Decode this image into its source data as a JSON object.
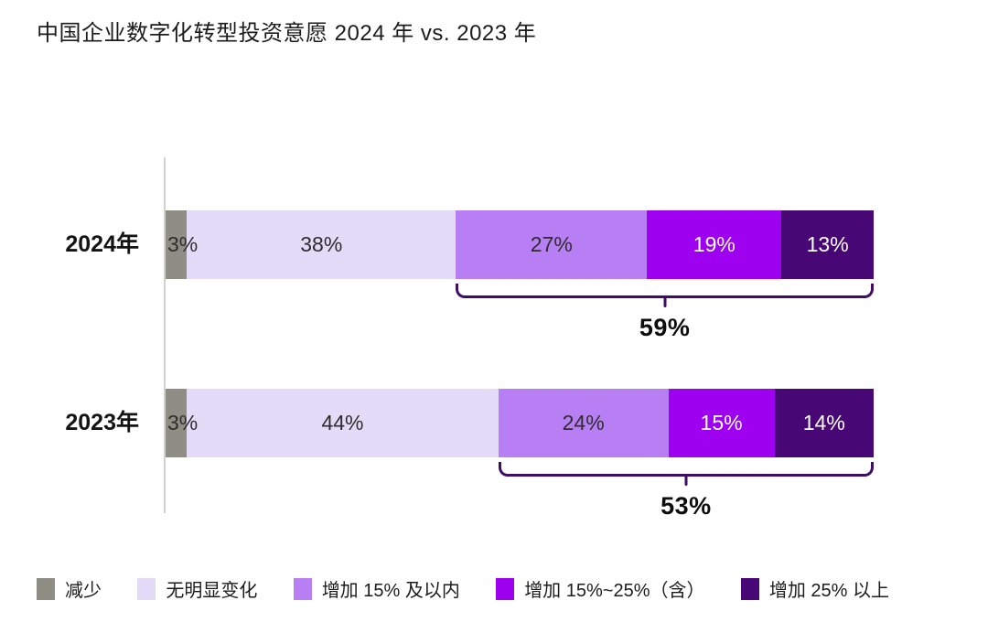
{
  "page": {
    "title": "中国企业数字化转型投资意愿 2024 年 vs. 2023 年"
  },
  "chart_data": {
    "type": "bar",
    "variant": "horizontal-stacked",
    "unit": "%",
    "title": "中国企业数字化转型投资意愿 2024 年 vs. 2023 年",
    "categories": [
      "2024年",
      "2023年"
    ],
    "series": [
      {
        "name": "减少",
        "color": "#8F8E84",
        "label_color": "#2D2D2D",
        "values": [
          3,
          3
        ]
      },
      {
        "name": "无明显变化",
        "color": "#E4DBF8",
        "label_color": "#2D2D2D",
        "values": [
          38,
          44
        ]
      },
      {
        "name": "增加 15% 及以内",
        "color": "#B87FF5",
        "label_color": "#2D2D2D",
        "values": [
          27,
          24
        ]
      },
      {
        "name": "增加 15%~25%（含）",
        "color": "#9E00F0",
        "label_color": "#FFFFFF",
        "values": [
          19,
          15
        ]
      },
      {
        "name": "增加 25% 以上",
        "color": "#470876",
        "label_color": "#FFFFFF",
        "values": [
          13,
          14
        ]
      }
    ],
    "annotations": [
      {
        "row": 0,
        "label": "59%",
        "covers_series": [
          "增加 15% 及以内",
          "增加 15%~25%（含）",
          "增加 25% 以上"
        ]
      },
      {
        "row": 1,
        "label": "53%",
        "covers_series": [
          "增加 15% 及以内",
          "增加 15%~25%（含）",
          "增加 25% 以上"
        ]
      }
    ],
    "xlim": [
      0,
      100
    ],
    "legend_position": "bottom",
    "grid": false,
    "brace_color": "#3D0E63",
    "axis_line_color": "#D3D1CD"
  }
}
